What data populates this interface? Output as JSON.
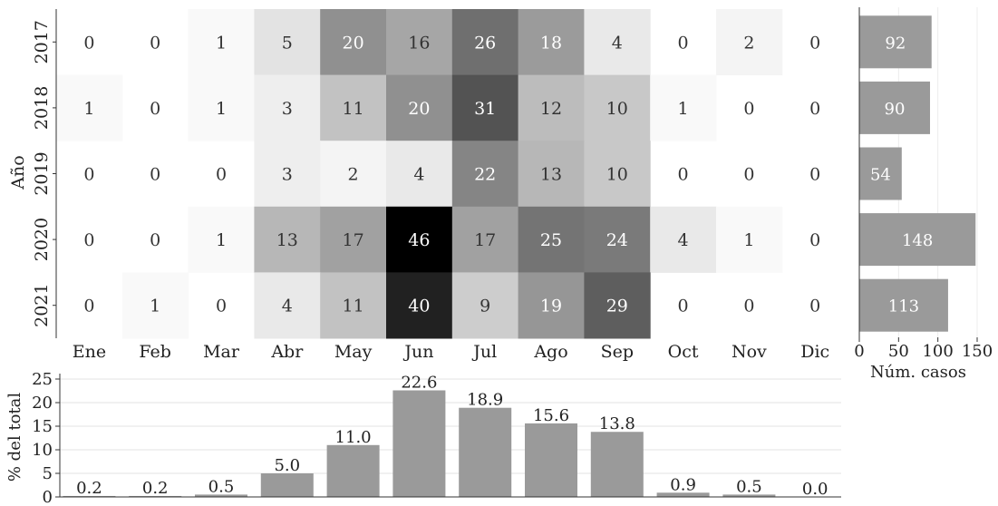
{
  "chart_data": [
    {
      "type": "heatmap",
      "xlabel": "",
      "ylabel": "Año",
      "x_categories": [
        "Ene",
        "Feb",
        "Mar",
        "Abr",
        "May",
        "Jun",
        "Jul",
        "Ago",
        "Sep",
        "Oct",
        "Nov",
        "Dic"
      ],
      "y_categories": [
        "2017",
        "2018",
        "2019",
        "2020",
        "2021"
      ],
      "values": [
        [
          0,
          0,
          1,
          5,
          20,
          16,
          26,
          18,
          4,
          0,
          2,
          0
        ],
        [
          1,
          0,
          1,
          3,
          11,
          20,
          31,
          12,
          10,
          1,
          0,
          0
        ],
        [
          0,
          0,
          0,
          3,
          2,
          4,
          22,
          13,
          10,
          0,
          0,
          0
        ],
        [
          0,
          0,
          1,
          13,
          17,
          46,
          17,
          25,
          24,
          4,
          1,
          0
        ],
        [
          0,
          1,
          0,
          4,
          11,
          40,
          9,
          19,
          29,
          0,
          0,
          0
        ]
      ],
      "value_range": [
        0,
        46
      ],
      "colormap": "greys"
    },
    {
      "type": "bar",
      "orientation": "horizontal",
      "categories": [
        "2017",
        "2018",
        "2019",
        "2020",
        "2021"
      ],
      "values": [
        92,
        90,
        54,
        148,
        113
      ],
      "xlabel": "Núm. casos",
      "xlim": [
        0,
        150
      ],
      "xticks": [
        0,
        50,
        100,
        150
      ],
      "grid": true,
      "bar_color": "#9a9a9a"
    },
    {
      "type": "bar",
      "categories": [
        "Ene",
        "Feb",
        "Mar",
        "Abr",
        "May",
        "Jun",
        "Jul",
        "Ago",
        "Sep",
        "Oct",
        "Nov",
        "Dic"
      ],
      "values": [
        0.2,
        0.2,
        0.5,
        5.0,
        11.0,
        22.6,
        18.9,
        15.6,
        13.8,
        0.9,
        0.5,
        0.0
      ],
      "data_labels": [
        "0.2",
        "0.2",
        "0.5",
        "5.0",
        "11.0",
        "22.6",
        "18.9",
        "15.6",
        "13.8",
        "0.9",
        "0.5",
        "0.0"
      ],
      "ylabel": "% del total",
      "ylim": [
        0,
        25
      ],
      "yticks": [
        0,
        5,
        10,
        15,
        20,
        25
      ],
      "grid": true,
      "bar_color": "#9a9a9a"
    }
  ]
}
